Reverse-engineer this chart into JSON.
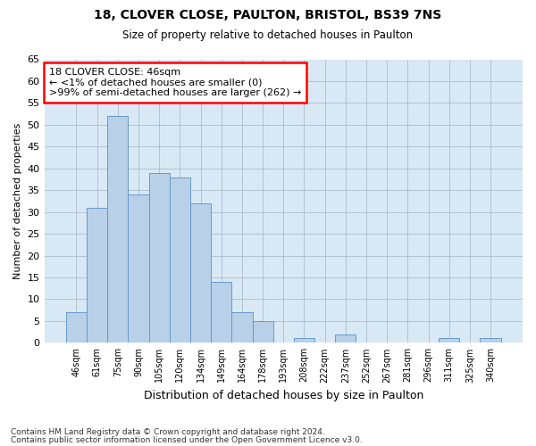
{
  "title1": "18, CLOVER CLOSE, PAULTON, BRISTOL, BS39 7NS",
  "title2": "Size of property relative to detached houses in Paulton",
  "xlabel": "Distribution of detached houses by size in Paulton",
  "ylabel": "Number of detached properties",
  "categories": [
    "46sqm",
    "61sqm",
    "75sqm",
    "90sqm",
    "105sqm",
    "120sqm",
    "134sqm",
    "149sqm",
    "164sqm",
    "178sqm",
    "193sqm",
    "208sqm",
    "222sqm",
    "237sqm",
    "252sqm",
    "267sqm",
    "281sqm",
    "296sqm",
    "311sqm",
    "325sqm",
    "340sqm"
  ],
  "values": [
    7,
    31,
    52,
    34,
    39,
    38,
    32,
    14,
    7,
    5,
    0,
    1,
    0,
    2,
    0,
    0,
    0,
    0,
    1,
    0,
    1
  ],
  "bar_color": "#b8d0e8",
  "bar_edge_color": "#6699cc",
  "annotation_line1": "18 CLOVER CLOSE: 46sqm",
  "annotation_line2": "← <1% of detached houses are smaller (0)",
  "annotation_line3": ">99% of semi-detached houses are larger (262) →",
  "annotation_box_color": "white",
  "annotation_box_edge_color": "red",
  "ylim": [
    0,
    65
  ],
  "yticks": [
    0,
    5,
    10,
    15,
    20,
    25,
    30,
    35,
    40,
    45,
    50,
    55,
    60,
    65
  ],
  "grid_color": "#aabbcc",
  "bg_color": "#d8e8f4",
  "footnote1": "Contains HM Land Registry data © Crown copyright and database right 2024.",
  "footnote2": "Contains public sector information licensed under the Open Government Licence v3.0."
}
